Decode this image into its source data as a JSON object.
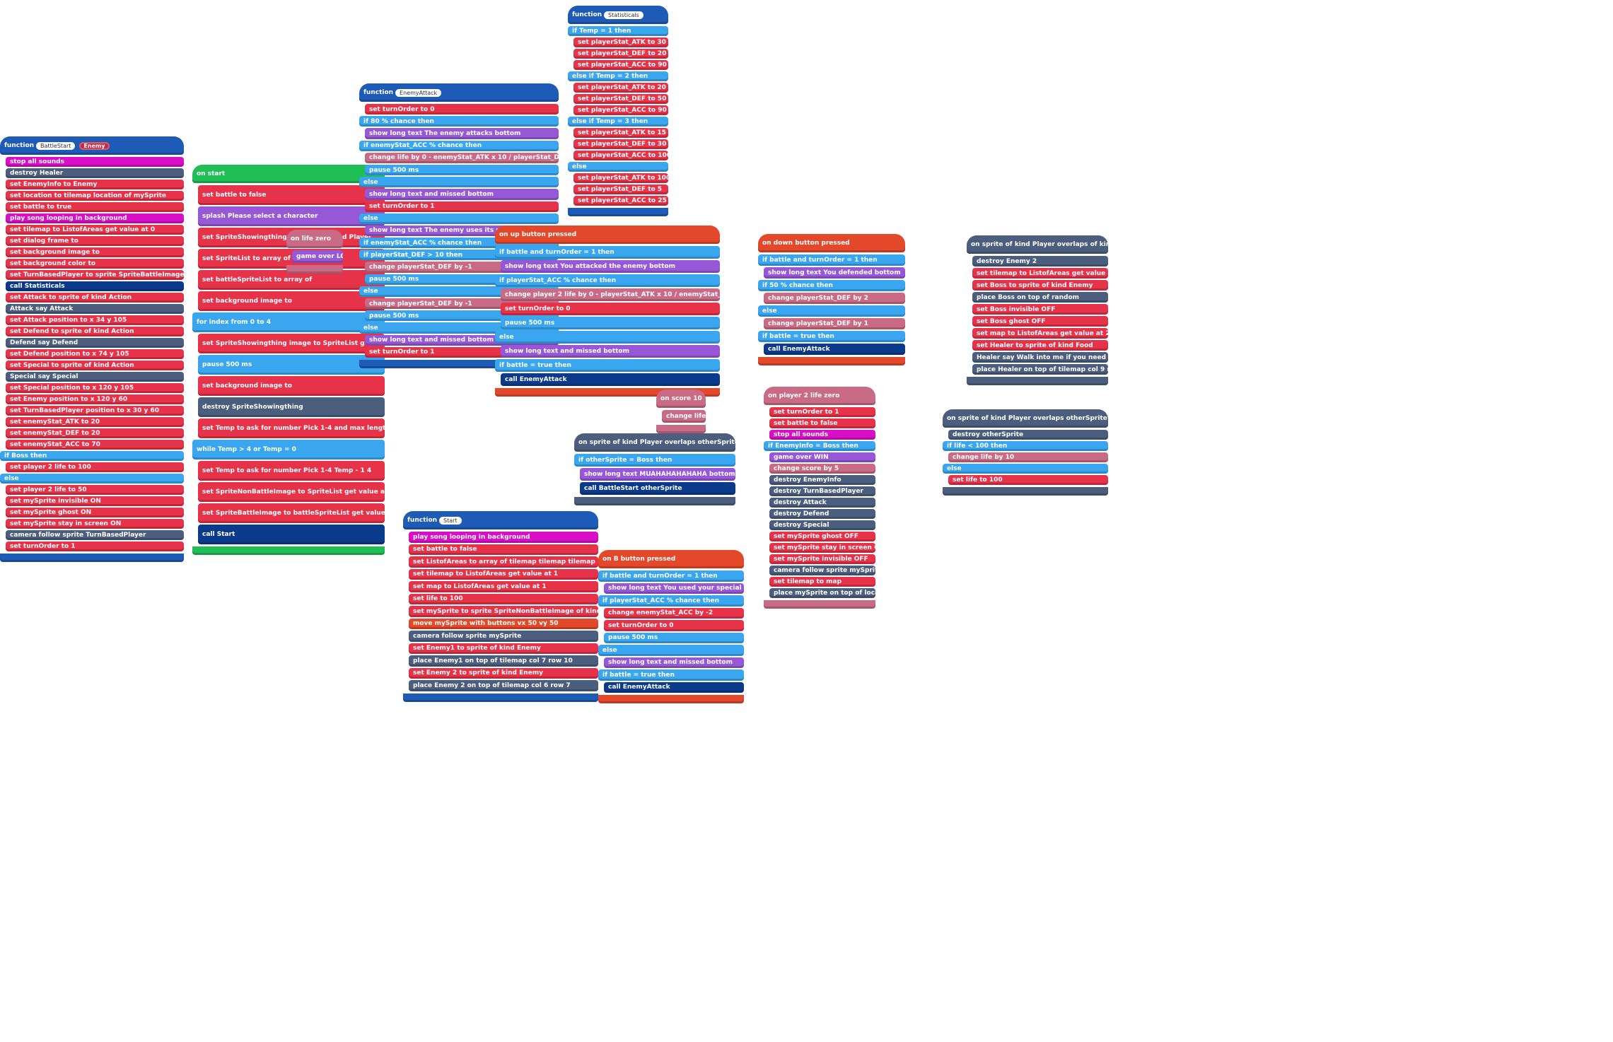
{
  "battle_start": {
    "header": "function",
    "name": "BattleStart",
    "param": "Enemy",
    "rows": [
      "stop all sounds",
      "destroy Healer",
      "set EnemyInfo to Enemy",
      "set location to tilemap location of mySprite",
      "set battle to true",
      "play song looping in background",
      "set tilemap to ListofAreas get value at 0",
      "set dialog frame to",
      "set background image to",
      "set background color to",
      "set TurnBasedPlayer to sprite SpriteBattleImage of kind Projectile",
      "call Statisticals",
      "set Attack to sprite of kind Action",
      "Attack say Attack",
      "set Attack position to x 34 y 105",
      "set Defend to sprite of kind Action",
      "Defend say Defend",
      "set Defend position to x 74 y 105",
      "set Special to sprite of kind Action",
      "Special say Special",
      "set Special position to x 120 y 105",
      "set Enemy position to x 120 y 60",
      "set TurnBasedPlayer position to x 30 y 60",
      "set enemyStat_ATK to 20",
      "set enemyStat_DEF to 20",
      "set enemyStat_ACC to 70",
      "if Boss then",
      "set player 2 life to 100",
      "else",
      "set player 2 life to 50",
      "set mySprite invisible ON",
      "set mySprite ghost ON",
      "set mySprite stay in screen ON",
      "camera follow sprite TurnBasedPlayer",
      "set turnOrder to 1"
    ]
  },
  "on_start": {
    "header": "on start",
    "rows": [
      "set battle to false",
      "splash Please select a character",
      "set SpriteShowingthing to sprite of kind Player",
      "set SpriteList to array of",
      "set battleSpriteList to array of",
      "set background image to",
      "for index from 0 to 4",
      "set SpriteShowingthing image to SpriteList get value at index",
      "pause 500 ms",
      "set background image to",
      "destroy SpriteShowingthing",
      "set Temp to ask for number Pick 1-4 and max length 1",
      "while Temp > 4 or Temp = 0",
      "set Temp to ask for number Pick 1-4 Temp - 1 4",
      "set SpriteNonBattleImage to SpriteList get value at Temp - 1",
      "set SpriteBattleImage to battleSpriteList get value at Temp - 1",
      "call Start"
    ]
  },
  "on_life_zero": {
    "header": "on life zero",
    "rows": [
      "game over LOSE"
    ]
  },
  "enemy_attack": {
    "header": "function",
    "name": "EnemyAttack",
    "rows": [
      "set turnOrder to 0",
      "if 80 % chance then",
      "show long text The enemy attacks bottom",
      "if enemyStat_ACC % chance then",
      "change life by 0 - enemyStat_ATK x 10 / playerStat_DEF",
      "pause 500 ms",
      "else",
      "show long text and missed bottom",
      "set turnOrder to 1",
      "else",
      "show long text The enemy uses its special bottom",
      "if enemyStat_ACC % chance then",
      "if playerStat_DEF > 10 then",
      "change playerStat_DEF by -1",
      "pause 500 ms",
      "else",
      "change playerStat_DEF by -1",
      "pause 500 ms",
      "else",
      "show long text and missed bottom",
      "set turnOrder to 1"
    ]
  },
  "statisticals": {
    "header": "function",
    "name": "Statisticals",
    "rows": [
      "if Temp = 1 then",
      "set playerStat_ATK to 30",
      "set playerStat_DEF to 20",
      "set playerStat_ACC to 90",
      "else if Temp = 2 then",
      "set playerStat_ATK to 20",
      "set playerStat_DEF to 50",
      "set playerStat_ACC to 90",
      "else if Temp = 3 then",
      "set playerStat_ATK to 15",
      "set playerStat_DEF to 30",
      "set playerStat_ACC to 100",
      "else",
      "set playerStat_ATK to 100",
      "set playerStat_DEF to 5",
      "set playerStat_ACC to 25"
    ]
  },
  "on_up": {
    "header": "on up button pressed",
    "rows": [
      "if battle and turnOrder = 1 then",
      "show long text You attacked the enemy bottom",
      "if playerStat_ACC % chance then",
      "change player 2 life by 0 - playerStat_ATK x 10 / enemyStat_DEF",
      "set turnOrder to 0",
      "pause 500 ms",
      "else",
      "show long text and missed bottom",
      "if battle = true then",
      "call EnemyAttack"
    ]
  },
  "on_score": {
    "header": "on score 10",
    "rows": [
      "change life by 50"
    ]
  },
  "overlap_enemy": {
    "header": "on sprite of kind Player overlaps otherSprite of kind Enemy",
    "rows": [
      "if otherSprite = Boss then",
      "show long text MUAHAHAHAHAHA bottom",
      "call BattleStart otherSprite"
    ]
  },
  "on_down": {
    "header": "on down button pressed",
    "rows": [
      "if battle and turnOrder = 1 then",
      "show long text You defended bottom",
      "if 50 % chance then",
      "change playerStat_DEF by 2",
      "else",
      "change playerStat_DEF by 1",
      "if battle = true then",
      "call EnemyAttack"
    ]
  },
  "p2_life_zero": {
    "header": "on player 2 life zero",
    "rows": [
      "set turnOrder to 1",
      "set battle to false",
      "stop all sounds",
      "if EnemyInfo = Boss then",
      "game over WIN",
      "change score by 5",
      "destroy EnemyInfo",
      "destroy TurnBasedPlayer",
      "destroy Attack",
      "destroy Defend",
      "destroy Special",
      "set mySprite ghost OFF",
      "set mySprite stay in screen OFF",
      "set mySprite invisible OFF",
      "camera follow sprite mySprite",
      "set tilemap to map",
      "place mySprite on top of location"
    ]
  },
  "overlap_player": {
    "header": "on sprite of kind Player overlaps of kind at location",
    "rows": [
      "destroy Enemy 2",
      "set tilemap to ListofAreas get value at 2",
      "set Boss to sprite of kind Enemy",
      "place Boss on top of random",
      "set Boss invisible OFF",
      "set Boss ghost OFF",
      "set map to ListofAreas get value at 2",
      "set Healer to sprite of kind Food",
      "Healer say Walk into me if you need to heal!",
      "place Healer on top of tilemap col 9 row 7"
    ]
  },
  "overlap_food": {
    "header": "on sprite of kind Player overlaps otherSprite of kind Food",
    "rows": [
      "destroy otherSprite",
      "if life < 100 then",
      "change life by 10",
      "else",
      "set life to 100"
    ]
  },
  "start": {
    "header": "function",
    "name": "Start",
    "rows": [
      "play song looping in background",
      "set battle to false",
      "set ListofAreas to array of tilemap tilemap tilemap",
      "set tilemap to ListofAreas get value at 1",
      "set map to ListofAreas get value at 1",
      "set life to 100",
      "set mySprite to sprite SpriteNonBattleImage of kind Player",
      "move mySprite with buttons vx 50 vy 50",
      "camera follow sprite mySprite",
      "set Enemy1 to sprite of kind Enemy",
      "place Enemy1 on top of tilemap col 7 row 10",
      "set Enemy 2 to sprite of kind Enemy",
      "place Enemy 2 on top of tilemap col 6 row 7"
    ]
  },
  "on_b": {
    "header": "on B button pressed",
    "rows": [
      "if battle and turnOrder = 1 then",
      "show long text You used your special bottom",
      "if playerStat_ACC % chance then",
      "change enemyStat_ACC by -2",
      "set turnOrder to 0",
      "pause 500 ms",
      "else",
      "show long text and missed bottom",
      "if battle = true then",
      "call EnemyAttack"
    ]
  },
  "colors": {
    "function": "#1e5bb7",
    "variables": "#e6334a",
    "logic": "#3aa6f0",
    "text": "#9658d6",
    "music": "#d80fc6",
    "loops": "#20bf55",
    "controller": "#e4482a",
    "info": "#c96a86",
    "scene": "#4c5e7e"
  }
}
